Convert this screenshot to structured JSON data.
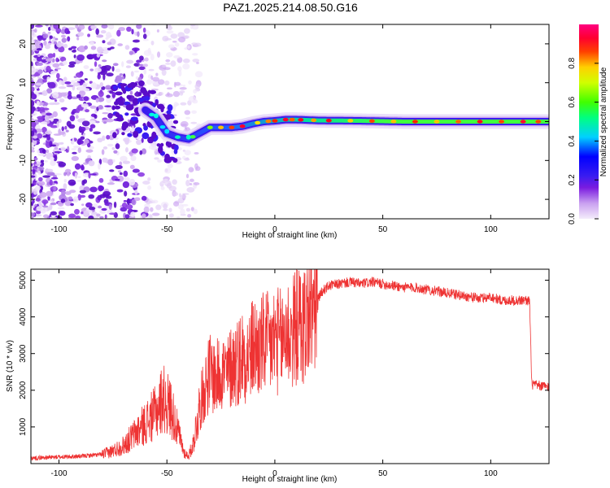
{
  "title": "PAZ1.2025.214.08.50.G16",
  "chart_data": [
    {
      "type": "heatmap",
      "title": "PAZ1.2025.214.08.50.G16",
      "xlabel": "Height of straight line (km)",
      "ylabel": "Frequency (Hz)",
      "xlim": [
        -113,
        127
      ],
      "ylim": [
        -25,
        25
      ],
      "xticks": [
        -100,
        -50,
        0,
        50,
        100
      ],
      "yticks": [
        -20,
        -10,
        0,
        10,
        20
      ],
      "colorbar": {
        "label": "Normalized spectral amplitude",
        "range": [
          0,
          1
        ],
        "ticks": [
          "0.0",
          "0.2",
          "0.4",
          "0.6",
          "0.8"
        ]
      },
      "ridge": {
        "x": [
          -60,
          -55,
          -50,
          -45,
          -40,
          -35,
          -30,
          -25,
          -20,
          -15,
          -10,
          -5,
          0,
          5,
          10,
          20,
          40,
          60,
          80,
          100,
          127
        ],
        "frequency": [
          3,
          1,
          -3,
          -4,
          -4.5,
          -3,
          -1.5,
          -1.5,
          -1.5,
          -1.2,
          -0.5,
          0,
          0.2,
          0.5,
          0.5,
          0.3,
          0.2,
          0,
          0,
          0,
          0
        ]
      }
    },
    {
      "type": "line",
      "xlabel": "Height of straight line (km)",
      "ylabel": "SNR (10 * v/v)",
      "xlim": [
        -113,
        127
      ],
      "ylim": [
        0,
        5300
      ],
      "xticks": [
        -100,
        -50,
        0,
        50,
        100
      ],
      "yticks": [
        1000,
        2000,
        3000,
        4000,
        5000
      ],
      "color": "#ee3333",
      "series": [
        {
          "x": [
            -113,
            -100,
            -90,
            -80,
            -75,
            -70,
            -65,
            -60,
            -55,
            -52,
            -48,
            -45,
            -42,
            -40,
            -38,
            -35,
            -32,
            -30,
            -27,
            -25,
            -22,
            -20,
            -17,
            -15,
            -12,
            -10,
            -7,
            -5,
            -2,
            0,
            3,
            5,
            8,
            10,
            13,
            15,
            18,
            20,
            22,
            25,
            30,
            35,
            40,
            45,
            50,
            55,
            60,
            65,
            70,
            75,
            80,
            85,
            90,
            95,
            100,
            105,
            110,
            115,
            118,
            119,
            120,
            125,
            127
          ],
          "values": [
            150,
            180,
            200,
            250,
            350,
            500,
            800,
            1100,
            1400,
            1800,
            1500,
            900,
            300,
            200,
            500,
            1500,
            2200,
            2500,
            2300,
            2600,
            2400,
            2700,
            2800,
            3000,
            2900,
            3200,
            3100,
            3300,
            3200,
            3400,
            3300,
            3600,
            3500,
            3800,
            3700,
            4000,
            4200,
            4500,
            4700,
            4850,
            4900,
            4950,
            4900,
            4950,
            4900,
            4850,
            4800,
            4800,
            4750,
            4700,
            4650,
            4600,
            4550,
            4500,
            4550,
            4450,
            4450,
            4450,
            4450,
            2150,
            2150,
            2100,
            2100
          ]
        }
      ]
    }
  ]
}
